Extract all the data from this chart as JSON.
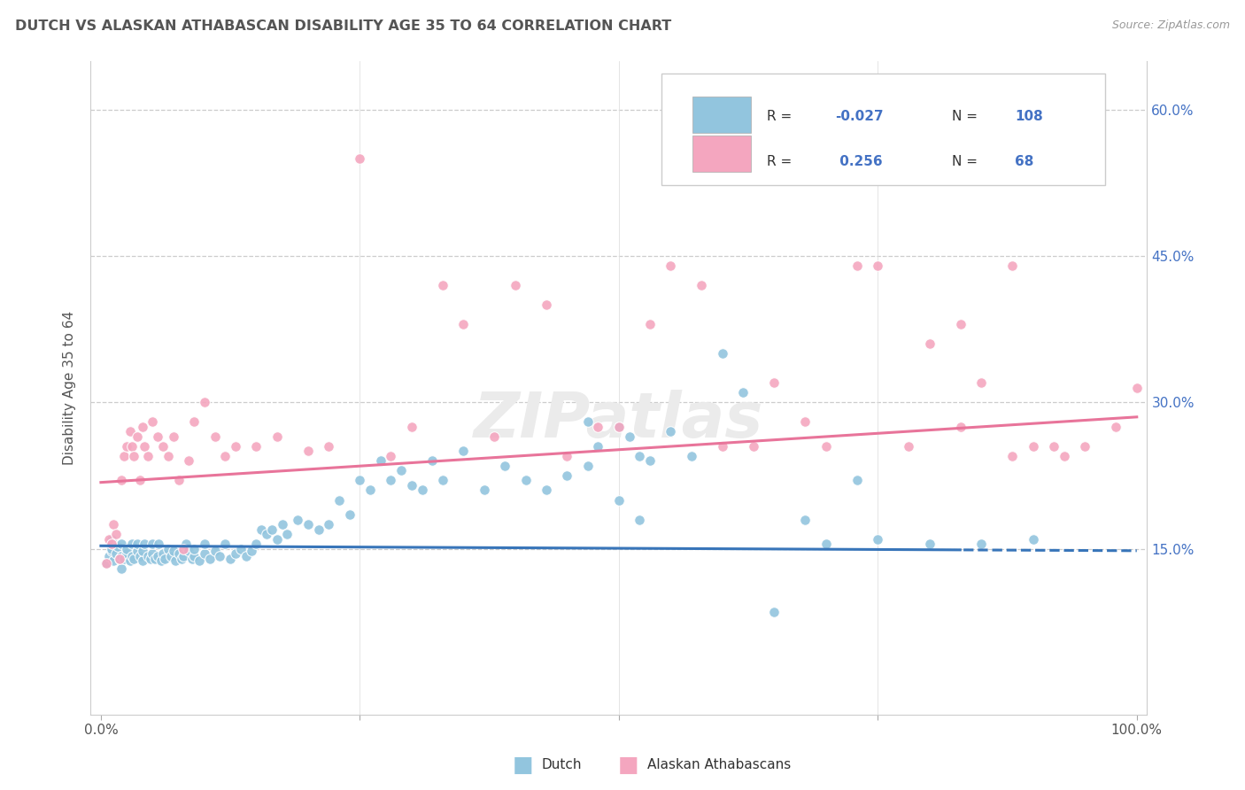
{
  "title": "DUTCH VS ALASKAN ATHABASCAN DISABILITY AGE 35 TO 64 CORRELATION CHART",
  "source": "Source: ZipAtlas.com",
  "ylabel": "Disability Age 35 to 64",
  "legend_R1": "-0.027",
  "legend_N1": "108",
  "legend_R2": "0.256",
  "legend_N2": "68",
  "dutch_color": "#92c5de",
  "athabascan_color": "#f4a6bf",
  "dutch_line_color": "#3875b9",
  "athabascan_line_color": "#e8749a",
  "text_color": "#4472C4",
  "grid_color": "#cccccc",
  "title_color": "#555555",
  "watermark": "ZIPatlas",
  "xlim": [
    -0.01,
    1.01
  ],
  "ylim": [
    -0.02,
    0.65
  ],
  "ytick_vals": [
    0.0,
    0.15,
    0.3,
    0.45,
    0.6
  ],
  "dutch_x": [
    0.005,
    0.008,
    0.01,
    0.01,
    0.01,
    0.012,
    0.015,
    0.016,
    0.018,
    0.02,
    0.02,
    0.02,
    0.022,
    0.025,
    0.025,
    0.028,
    0.03,
    0.03,
    0.032,
    0.035,
    0.035,
    0.038,
    0.04,
    0.04,
    0.042,
    0.045,
    0.048,
    0.05,
    0.05,
    0.052,
    0.055,
    0.056,
    0.058,
    0.06,
    0.062,
    0.065,
    0.068,
    0.07,
    0.072,
    0.075,
    0.078,
    0.08,
    0.082,
    0.085,
    0.088,
    0.09,
    0.09,
    0.095,
    0.1,
    0.1,
    0.105,
    0.11,
    0.115,
    0.12,
    0.125,
    0.13,
    0.135,
    0.14,
    0.145,
    0.15,
    0.155,
    0.16,
    0.165,
    0.17,
    0.175,
    0.18,
    0.19,
    0.2,
    0.21,
    0.22,
    0.23,
    0.24,
    0.25,
    0.26,
    0.27,
    0.28,
    0.29,
    0.3,
    0.31,
    0.32,
    0.33,
    0.35,
    0.37,
    0.39,
    0.41,
    0.43,
    0.45,
    0.47,
    0.5,
    0.52,
    0.47,
    0.48,
    0.5,
    0.51,
    0.52,
    0.53,
    0.55,
    0.57,
    0.6,
    0.62,
    0.65,
    0.68,
    0.7,
    0.73,
    0.75,
    0.8,
    0.85,
    0.9
  ],
  "dutch_y": [
    0.135,
    0.142,
    0.148,
    0.15,
    0.16,
    0.138,
    0.145,
    0.152,
    0.14,
    0.13,
    0.142,
    0.155,
    0.14,
    0.145,
    0.15,
    0.138,
    0.142,
    0.155,
    0.14,
    0.148,
    0.155,
    0.142,
    0.138,
    0.148,
    0.155,
    0.142,
    0.14,
    0.145,
    0.155,
    0.14,
    0.142,
    0.155,
    0.138,
    0.145,
    0.14,
    0.15,
    0.142,
    0.148,
    0.138,
    0.145,
    0.14,
    0.142,
    0.155,
    0.148,
    0.14,
    0.142,
    0.15,
    0.138,
    0.145,
    0.155,
    0.14,
    0.148,
    0.142,
    0.155,
    0.14,
    0.145,
    0.15,
    0.142,
    0.148,
    0.155,
    0.17,
    0.165,
    0.17,
    0.16,
    0.175,
    0.165,
    0.18,
    0.175,
    0.17,
    0.175,
    0.2,
    0.185,
    0.22,
    0.21,
    0.24,
    0.22,
    0.23,
    0.215,
    0.21,
    0.24,
    0.22,
    0.25,
    0.21,
    0.235,
    0.22,
    0.21,
    0.225,
    0.235,
    0.2,
    0.245,
    0.28,
    0.255,
    0.275,
    0.265,
    0.18,
    0.24,
    0.27,
    0.245,
    0.35,
    0.31,
    0.085,
    0.18,
    0.155,
    0.22,
    0.16,
    0.155,
    0.155,
    0.16
  ],
  "athabascan_x": [
    0.005,
    0.008,
    0.01,
    0.012,
    0.015,
    0.018,
    0.02,
    0.022,
    0.025,
    0.028,
    0.03,
    0.032,
    0.035,
    0.038,
    0.04,
    0.042,
    0.045,
    0.05,
    0.055,
    0.06,
    0.065,
    0.07,
    0.075,
    0.08,
    0.085,
    0.09,
    0.1,
    0.11,
    0.12,
    0.13,
    0.15,
    0.17,
    0.2,
    0.22,
    0.25,
    0.28,
    0.3,
    0.33,
    0.35,
    0.38,
    0.4,
    0.43,
    0.45,
    0.48,
    0.5,
    0.53,
    0.55,
    0.58,
    0.6,
    0.63,
    0.65,
    0.68,
    0.7,
    0.73,
    0.75,
    0.78,
    0.8,
    0.83,
    0.85,
    0.88,
    0.9,
    0.93,
    0.95,
    0.98,
    1.0,
    0.83,
    0.88,
    0.92
  ],
  "athabascan_y": [
    0.135,
    0.16,
    0.155,
    0.175,
    0.165,
    0.14,
    0.22,
    0.245,
    0.255,
    0.27,
    0.255,
    0.245,
    0.265,
    0.22,
    0.275,
    0.255,
    0.245,
    0.28,
    0.265,
    0.255,
    0.245,
    0.265,
    0.22,
    0.15,
    0.24,
    0.28,
    0.3,
    0.265,
    0.245,
    0.255,
    0.255,
    0.265,
    0.25,
    0.255,
    0.55,
    0.245,
    0.275,
    0.42,
    0.38,
    0.265,
    0.42,
    0.4,
    0.245,
    0.275,
    0.275,
    0.38,
    0.44,
    0.42,
    0.255,
    0.255,
    0.32,
    0.28,
    0.255,
    0.44,
    0.44,
    0.255,
    0.36,
    0.275,
    0.32,
    0.245,
    0.255,
    0.245,
    0.255,
    0.275,
    0.315,
    0.38,
    0.44,
    0.255
  ]
}
